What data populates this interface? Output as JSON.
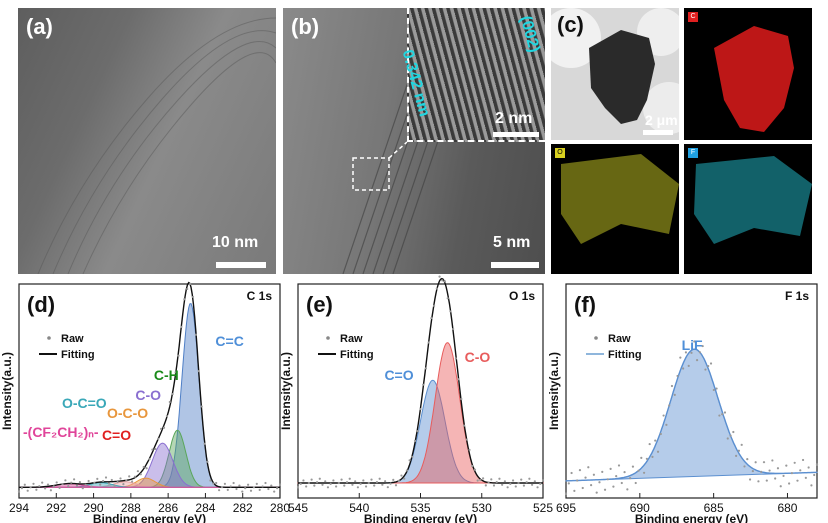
{
  "tem": {
    "a": {
      "label": "(a)",
      "scale": "10 nm"
    },
    "b": {
      "label": "(b)",
      "scale": "5 nm",
      "inset_scale": "2 nm",
      "d_spacing": "0.342 nm",
      "plane": "(002)"
    },
    "c": {
      "label": "(c)",
      "scale": "2 μm",
      "maps": [
        "C",
        "O",
        "F"
      ]
    }
  },
  "colors": {
    "bg_c": "#d6e7f3",
    "bg_o": "#f6dcda",
    "bg_f": "#e3eef6",
    "blue_line": "#2f5e9c",
    "c_eq_c": "#5b8fd0",
    "c_h": "#1a8a1a",
    "c_o": "#8a6fd0",
    "o_c_o": "#e8963c",
    "o_c_eqo": "#3aa8b8",
    "c_eqo_red": "#e02020",
    "cf2": "#e0459a",
    "o_c_o_peak": "#e85c5c",
    "o_ceqo_peak": "#5b8fd0",
    "lif": "#5b8fd0"
  },
  "chart_data": [
    {
      "type": "line",
      "panel": "(d)",
      "title": "C 1s",
      "xlabel": "Binding energy (eV)",
      "ylabel": "Intensity(a.u.)",
      "xlim": [
        294,
        280
      ],
      "xticks": [
        294,
        292,
        290,
        288,
        286,
        284,
        282,
        280
      ],
      "legend": [
        "Raw",
        "Fitting"
      ],
      "legend_position": "top-left",
      "components": [
        {
          "name": "C=C",
          "center": 284.8,
          "height": 1.0,
          "width": 0.45
        },
        {
          "name": "C-H",
          "center": 285.5,
          "height": 0.31,
          "width": 0.45
        },
        {
          "name": "C-O",
          "center": 286.3,
          "height": 0.24,
          "width": 0.55
        },
        {
          "name": "O-C-O",
          "center": 287.2,
          "height": 0.05,
          "width": 0.5
        },
        {
          "name": "C=O",
          "center": 288.3,
          "height": 0.03,
          "width": 0.6
        },
        {
          "name": "O-C=O",
          "center": 289.6,
          "height": 0.025,
          "width": 0.6
        },
        {
          "name": "-(CF2CH2)n-",
          "center": 291.3,
          "height": 0.02,
          "width": 0.7
        }
      ]
    },
    {
      "type": "line",
      "panel": "(e)",
      "title": "O 1s",
      "xlabel": "Binding energy (eV)",
      "ylabel": "Intensity(a.u.)",
      "xlim": [
        545,
        525
      ],
      "xticks": [
        545,
        540,
        535,
        530,
        525
      ],
      "legend": [
        "Raw",
        "Fitting"
      ],
      "legend_position": "top-left",
      "components": [
        {
          "name": "C=O",
          "center": 534.0,
          "height": 0.6,
          "width": 1.0
        },
        {
          "name": "C-O",
          "center": 532.8,
          "height": 0.82,
          "width": 1.0
        }
      ]
    },
    {
      "type": "line",
      "panel": "(f)",
      "title": "F 1s",
      "xlabel": "Binding energy (eV)",
      "ylabel": "Intensity(a.u.)",
      "xlim": [
        695,
        678
      ],
      "xticks": [
        695,
        690,
        685,
        680
      ],
      "legend": [
        "Raw",
        "Fitting"
      ],
      "legend_position": "top-left",
      "components": [
        {
          "name": "LiF",
          "center": 686.3,
          "height": 0.85,
          "width": 1.6
        }
      ]
    }
  ],
  "labels": {
    "d_label": "(d)",
    "e_label": "(e)",
    "f_label": "(f)",
    "cf_label": "-(CF₂CH₂)ₙ-"
  }
}
